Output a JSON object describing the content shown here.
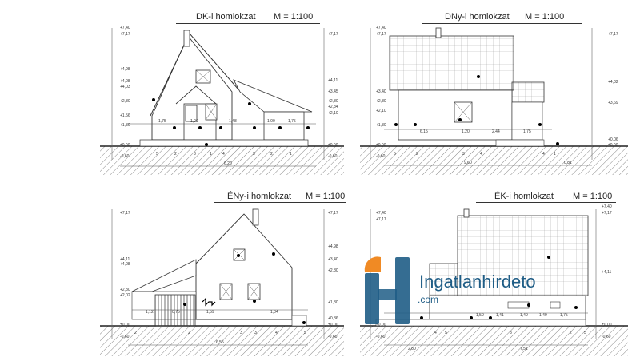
{
  "panels": [
    {
      "title": "DK-i homlokzat",
      "scale": "M = 1:100"
    },
    {
      "title": "DNy-i homlokzat",
      "scale": "M = 1:100"
    },
    {
      "title": "ÉNy-i homlokzat",
      "scale": "M = 1:100"
    },
    {
      "title": "ÉK-i homlokzat",
      "scale": "M = 1:100"
    }
  ],
  "levels": {
    "dk_left": [
      "+7,40",
      "+7,17",
      "+4,98",
      "+4,08",
      "+4,03",
      "+2,80",
      "+1,56",
      "+1,30",
      "±0,00",
      "-0,60"
    ],
    "dk_right": [
      "+7,17",
      "+4,11",
      "+3,45",
      "+2,80",
      "+2,34",
      "+2,10",
      "±0,00",
      "-0,60"
    ],
    "dny_left": [
      "+7,40",
      "+7,17",
      "+3,40",
      "+2,80",
      "+2,10",
      "+1,30",
      "±0,00",
      "-0,60"
    ],
    "dny_right": [
      "+7,17",
      "+4,02",
      "+3,69",
      "+0,06",
      "±0,00"
    ],
    "eny_left": [
      "+7,17",
      "+4,11",
      "+4,08",
      "+2,30",
      "+2,02",
      "±0,00",
      "-0,60"
    ],
    "eny_right": [
      "+7,17",
      "+4,98",
      "+3,40",
      "+2,80",
      "+1,30",
      "+0,36",
      "±0,00",
      "-0,60"
    ],
    "ek_left": [
      "+7,40",
      "+7,17",
      "±0,00",
      "-0,60"
    ],
    "ek_right": [
      "+7,40",
      "+7,17",
      "+4,11",
      "±0,00",
      "-0,60"
    ]
  },
  "dims": {
    "dk": [
      "1,75",
      "1,00",
      "1,48",
      "1,00",
      "1,75",
      "6,20"
    ],
    "dny": [
      "6,15",
      "1,20",
      "2,44",
      "1,75",
      "9,60",
      "0,81"
    ],
    "eny": [
      "1,12",
      "0,75",
      "1,59",
      "1,04",
      "6,55"
    ],
    "ek": [
      "1,50",
      "1,41",
      "1,40",
      "1,49",
      "1,75",
      "7,51",
      "2,80"
    ]
  },
  "axis_labels": {
    "dk": [
      "5",
      "2",
      "3",
      "1",
      "4",
      "3",
      "2",
      "1"
    ],
    "dny": [
      "5",
      "2",
      "3",
      "4",
      "4",
      "1"
    ],
    "eny": [
      "2",
      "2",
      "3",
      "3",
      "4",
      "5"
    ],
    "ek": [
      "1",
      "4",
      "5",
      "3",
      "2",
      "5"
    ]
  },
  "watermark": {
    "brand": "Ingatlanhirdeto",
    "suffix": ".com",
    "accent": "#f08a24",
    "primary": "#1f5d86"
  }
}
